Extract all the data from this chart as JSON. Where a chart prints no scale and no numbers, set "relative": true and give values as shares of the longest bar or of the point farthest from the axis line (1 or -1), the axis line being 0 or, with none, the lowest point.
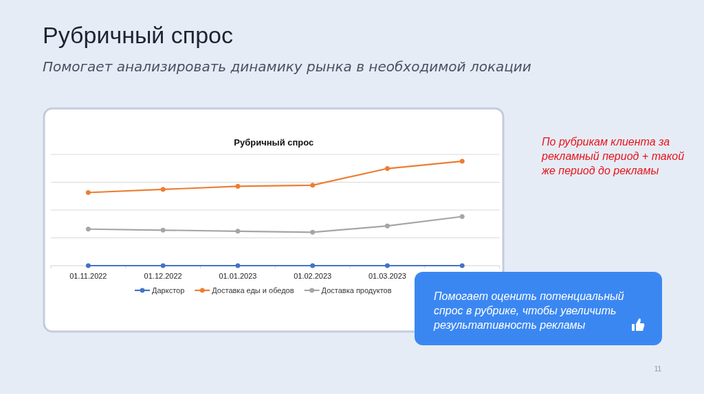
{
  "chart_data": {
    "type": "line",
    "title": "Рубричный спрос",
    "subtitle": "Помогает анализировать динамику рынка в необходимой локации",
    "categories": [
      "01.11.2022",
      "01.12.2022",
      "01.01.2023",
      "01.02.2023",
      "01.03.2023",
      null
    ],
    "series": [
      {
        "name": "Даркстор",
        "color": "#4472c4",
        "values": [
          0,
          0,
          0,
          0,
          0,
          0
        ]
      },
      {
        "name": "Доставка еды и обедов",
        "color": "#ed7d31",
        "values": [
          0.7,
          0.73,
          0.76,
          0.77,
          0.93,
          1
        ]
      },
      {
        "name": "Доставка продуктов",
        "color": "#a5a5a5",
        "values": [
          0.35,
          0.34,
          0.33,
          0.32,
          0.38,
          0.47
        ]
      }
    ],
    "relative": true,
    "grid": "y",
    "legend": "bottom",
    "marker": "circle",
    "line_style": "solid",
    "annotations": [
      "Рубричный спрос",
      "По рубрикам клиента за рекламный период + такой же период до рекламы",
      "Помогает оценить потенциальный спрос в рубрике, чтобы увеличить результативность рекламы",
      "11"
    ]
  }
}
